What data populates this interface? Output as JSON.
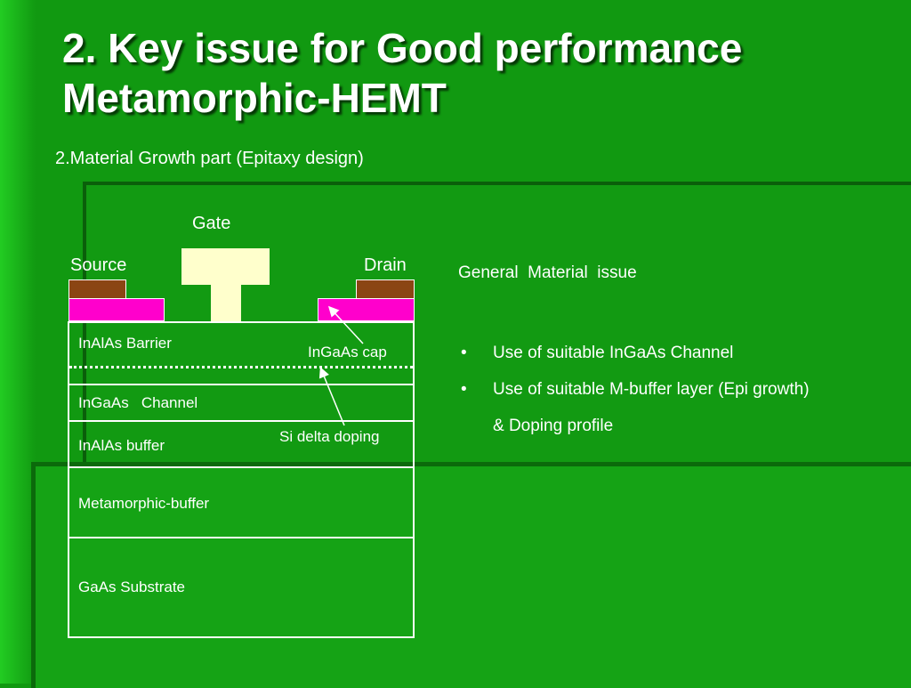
{
  "title": {
    "line1": "2. Key issue for Good performance",
    "line2": "Metamorphic-HEMT"
  },
  "subtitle": "2.Material Growth part (Epitaxy design)",
  "diagram": {
    "gate_label": "Gate",
    "source_label": "Source",
    "drain_label": "Drain",
    "cap_label": "InGaAs cap",
    "delta_label": "Si delta doping",
    "layers": {
      "barrier": "InAlAs Barrier",
      "channel": "InGaAs   Channel",
      "buffer": "InAlAs buffer",
      "metamorphic": "Metamorphic-buffer",
      "substrate": "GaAs Substrate"
    },
    "colors": {
      "contact_metal": "#8b4513",
      "cap_layer": "#ff00cc",
      "gate_metal": "#ffffcc",
      "background": "#119911"
    }
  },
  "issues": {
    "title": "General  Material  issue",
    "bullet_symbol": "•",
    "items": [
      "Use of suitable InGaAs Channel",
      "Use of suitable M-buffer layer (Epi growth)",
      "& Doping profile"
    ]
  }
}
